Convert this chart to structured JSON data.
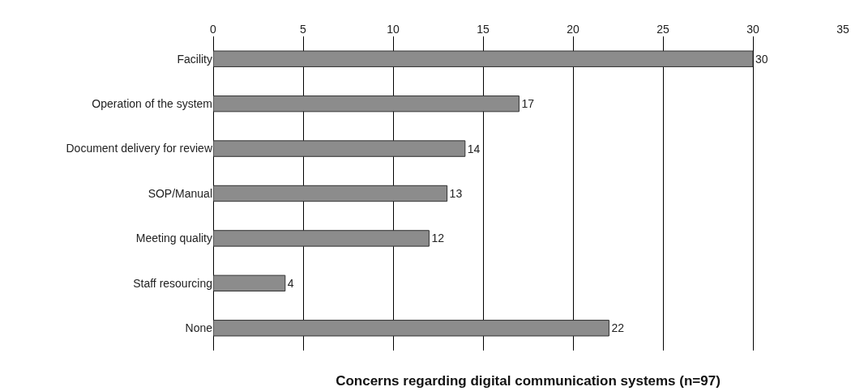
{
  "chart_data": {
    "type": "bar",
    "orientation": "horizontal",
    "title": "Concerns regarding digital communication systems (n=97)",
    "categories": [
      "Facility",
      "Operation of the system",
      "Document delivery for review",
      "SOP/Manual",
      "Meeting quality",
      "Staff resourcing",
      "None"
    ],
    "values": [
      30,
      17,
      14,
      13,
      12,
      4,
      22
    ],
    "color": "#8c8c8c",
    "xlim": [
      0,
      35
    ],
    "xticks": [
      0,
      5,
      10,
      15,
      20,
      25,
      30,
      35
    ],
    "grid": "x",
    "data_labels": true
  }
}
